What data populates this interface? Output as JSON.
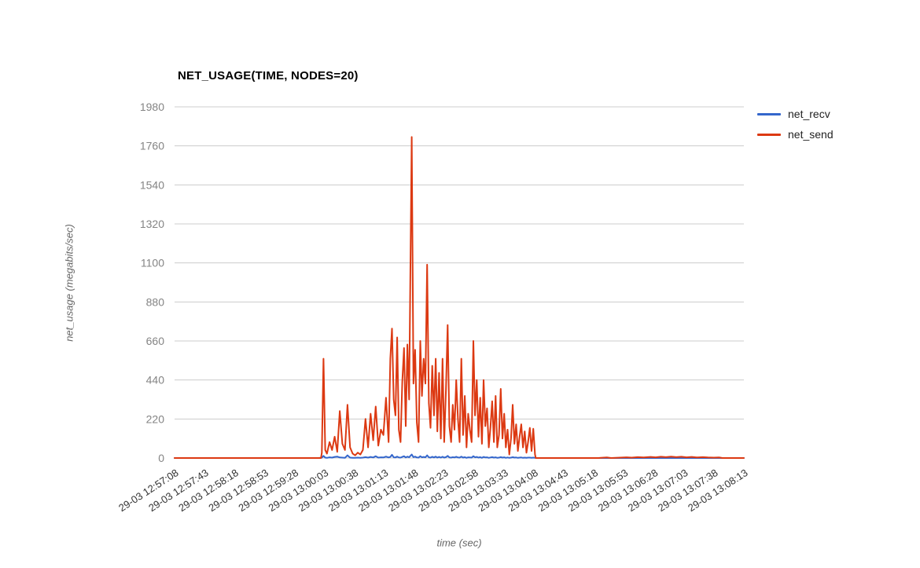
{
  "title": "NET_USAGE(TIME, NODES=20)",
  "legend": {
    "position": "right",
    "items": [
      {
        "label": "net_recv",
        "color": "#3366cc"
      },
      {
        "label": "net_send",
        "color": "#dc3912"
      }
    ]
  },
  "chart_data": {
    "type": "line",
    "title": "NET_USAGE(TIME, NODES=20)",
    "xlabel": "time (sec)",
    "ylabel": "net_usage (megabits/sec)",
    "grid": "horizontal",
    "legend_position": "right",
    "ylim": [
      0,
      1980
    ],
    "yticks": [
      0,
      220,
      440,
      660,
      880,
      1100,
      1320,
      1540,
      1760,
      1980
    ],
    "x_range_sec": [
      0,
      665
    ],
    "x_tick_interval_sec": 35,
    "x_tick_labels": [
      "29-03 12:57:08",
      "29-03 12:57:43",
      "29-03 12:58:18",
      "29-03 12:58:53",
      "29-03 12:59:28",
      "29-03 13:00:03",
      "29-03 13:00:38",
      "29-03 13:01:13",
      "29-03 13:01:48",
      "29-03 13:02:23",
      "29-03 13:02:58",
      "29-03 13:03:33",
      "29-03 13:04:08",
      "29-03 13:04:43",
      "29-03 13:05:18",
      "29-03 13:05:53",
      "29-03 13:06:28",
      "29-03 13:07:03",
      "29-03 13:07:38",
      "29-03 13:08:13"
    ],
    "colors": {
      "gridline": "#cccccc",
      "ytick_label": "#848484",
      "xtick_label": "#333333",
      "axis_title": "#666666",
      "title": "#000000",
      "background": "#ffffff"
    },
    "series": [
      {
        "name": "net_recv",
        "color": "#3366cc"
      },
      {
        "name": "net_send",
        "color": "#dc3912"
      }
    ],
    "points_format": [
      "t_sec_from_12:57:08",
      "net_recv",
      "net_send"
    ],
    "points": [
      [
        0,
        0,
        0
      ],
      [
        35,
        0,
        0
      ],
      [
        70,
        0,
        0
      ],
      [
        105,
        0,
        0
      ],
      [
        140,
        0,
        0
      ],
      [
        168,
        0,
        0
      ],
      [
        171,
        1,
        0
      ],
      [
        172,
        2,
        30
      ],
      [
        174,
        12,
        560
      ],
      [
        176,
        2,
        45
      ],
      [
        178,
        1,
        25
      ],
      [
        181,
        4,
        90
      ],
      [
        184,
        2,
        45
      ],
      [
        187,
        6,
        120
      ],
      [
        190,
        8,
        35
      ],
      [
        193,
        3,
        265
      ],
      [
        196,
        2,
        80
      ],
      [
        199,
        1,
        45
      ],
      [
        202,
        15,
        300
      ],
      [
        205,
        2,
        60
      ],
      [
        208,
        1,
        25
      ],
      [
        211,
        1,
        15
      ],
      [
        214,
        2,
        30
      ],
      [
        217,
        1,
        20
      ],
      [
        220,
        2,
        45
      ],
      [
        223,
        5,
        220
      ],
      [
        226,
        2,
        60
      ],
      [
        229,
        6,
        250
      ],
      [
        232,
        3,
        100
      ],
      [
        235,
        10,
        290
      ],
      [
        238,
        2,
        70
      ],
      [
        241,
        4,
        160
      ],
      [
        244,
        3,
        130
      ],
      [
        247,
        8,
        340
      ],
      [
        250,
        3,
        90
      ],
      [
        252,
        6,
        560
      ],
      [
        254,
        18,
        730
      ],
      [
        256,
        4,
        330
      ],
      [
        258,
        3,
        240
      ],
      [
        260,
        8,
        680
      ],
      [
        262,
        3,
        160
      ],
      [
        264,
        2,
        90
      ],
      [
        266,
        6,
        430
      ],
      [
        268,
        10,
        620
      ],
      [
        270,
        3,
        180
      ],
      [
        272,
        8,
        640
      ],
      [
        274,
        4,
        330
      ],
      [
        277,
        20,
        1810
      ],
      [
        279,
        5,
        420
      ],
      [
        281,
        8,
        610
      ],
      [
        283,
        3,
        200
      ],
      [
        285,
        2,
        90
      ],
      [
        287,
        10,
        660
      ],
      [
        289,
        4,
        350
      ],
      [
        291,
        6,
        560
      ],
      [
        293,
        4,
        420
      ],
      [
        295,
        15,
        1090
      ],
      [
        297,
        4,
        310
      ],
      [
        299,
        2,
        170
      ],
      [
        301,
        7,
        520
      ],
      [
        303,
        3,
        240
      ],
      [
        305,
        8,
        560
      ],
      [
        307,
        2,
        150
      ],
      [
        309,
        6,
        480
      ],
      [
        311,
        2,
        110
      ],
      [
        313,
        7,
        560
      ],
      [
        315,
        2,
        90
      ],
      [
        317,
        5,
        380
      ],
      [
        319,
        12,
        750
      ],
      [
        321,
        3,
        180
      ],
      [
        323,
        2,
        90
      ],
      [
        325,
        5,
        300
      ],
      [
        327,
        3,
        160
      ],
      [
        329,
        7,
        440
      ],
      [
        331,
        3,
        220
      ],
      [
        333,
        2,
        90
      ],
      [
        335,
        8,
        560
      ],
      [
        337,
        2,
        130
      ],
      [
        339,
        5,
        350
      ],
      [
        341,
        1,
        60
      ],
      [
        343,
        4,
        250
      ],
      [
        345,
        3,
        160
      ],
      [
        347,
        2,
        90
      ],
      [
        349,
        10,
        660
      ],
      [
        351,
        4,
        240
      ],
      [
        353,
        6,
        440
      ],
      [
        355,
        2,
        120
      ],
      [
        357,
        5,
        340
      ],
      [
        359,
        1,
        80
      ],
      [
        361,
        6,
        440
      ],
      [
        363,
        3,
        180
      ],
      [
        365,
        4,
        280
      ],
      [
        367,
        1,
        60
      ],
      [
        369,
        3,
        170
      ],
      [
        371,
        5,
        320
      ],
      [
        373,
        2,
        90
      ],
      [
        375,
        4,
        350
      ],
      [
        377,
        1,
        60
      ],
      [
        379,
        2,
        130
      ],
      [
        381,
        5,
        390
      ],
      [
        383,
        2,
        110
      ],
      [
        385,
        4,
        250
      ],
      [
        387,
        1,
        60
      ],
      [
        389,
        3,
        160
      ],
      [
        391,
        1,
        20
      ],
      [
        393,
        2,
        110
      ],
      [
        395,
        5,
        300
      ],
      [
        397,
        2,
        80
      ],
      [
        399,
        3,
        190
      ],
      [
        401,
        1,
        40
      ],
      [
        403,
        2,
        120
      ],
      [
        405,
        3,
        190
      ],
      [
        407,
        1,
        60
      ],
      [
        409,
        2,
        150
      ],
      [
        411,
        1,
        30
      ],
      [
        413,
        2,
        90
      ],
      [
        415,
        2,
        170
      ],
      [
        417,
        1,
        40
      ],
      [
        419,
        2,
        165
      ],
      [
        421,
        1,
        20
      ],
      [
        422,
        0,
        0
      ],
      [
        425,
        0,
        0
      ],
      [
        460,
        0,
        0
      ],
      [
        495,
        0,
        0
      ],
      [
        505,
        0,
        3
      ],
      [
        510,
        0,
        0
      ],
      [
        528,
        0,
        4
      ],
      [
        534,
        0,
        2
      ],
      [
        541,
        0,
        5
      ],
      [
        548,
        0,
        3
      ],
      [
        556,
        0,
        6
      ],
      [
        562,
        0,
        4
      ],
      [
        568,
        0,
        7
      ],
      [
        574,
        0,
        5
      ],
      [
        580,
        0,
        8
      ],
      [
        586,
        0,
        5
      ],
      [
        592,
        0,
        7
      ],
      [
        598,
        0,
        4
      ],
      [
        604,
        0,
        6
      ],
      [
        610,
        0,
        3
      ],
      [
        617,
        0,
        5
      ],
      [
        623,
        0,
        3
      ],
      [
        630,
        0,
        2
      ],
      [
        636,
        0,
        3
      ],
      [
        640,
        0,
        0
      ],
      [
        665,
        0,
        0
      ]
    ]
  }
}
